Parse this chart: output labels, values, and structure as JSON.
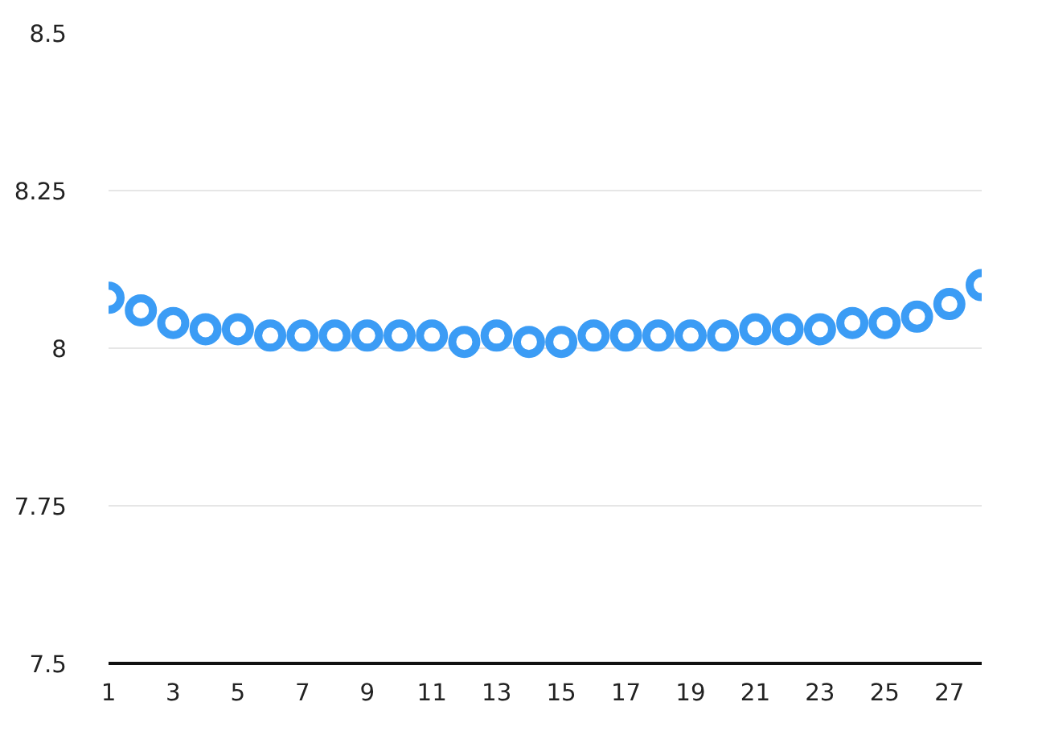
{
  "chart_data": {
    "type": "scatter",
    "x": [
      1,
      2,
      3,
      4,
      5,
      6,
      7,
      8,
      9,
      10,
      11,
      12,
      13,
      14,
      15,
      16,
      17,
      18,
      19,
      20,
      21,
      22,
      23,
      24,
      25,
      26,
      27,
      28
    ],
    "series": [
      {
        "color": "#3b9cf5",
        "values": [
          8.08,
          8.06,
          8.04,
          8.03,
          8.03,
          8.02,
          8.02,
          8.02,
          8.02,
          8.02,
          8.02,
          8.01,
          8.02,
          8.01,
          8.01,
          8.02,
          8.02,
          8.02,
          8.02,
          8.02,
          8.03,
          8.03,
          8.03,
          8.04,
          8.04,
          8.05,
          8.07,
          8.1
        ]
      }
    ],
    "xlim": [
      1,
      28
    ],
    "xticks": [
      1,
      3,
      5,
      7,
      9,
      11,
      13,
      15,
      17,
      19,
      21,
      23,
      25,
      27
    ],
    "ylim": [
      7.5,
      8.5
    ],
    "yticks": [
      7.5,
      7.75,
      8,
      8.25,
      8.5
    ],
    "grid": "y",
    "marker": "circle"
  }
}
